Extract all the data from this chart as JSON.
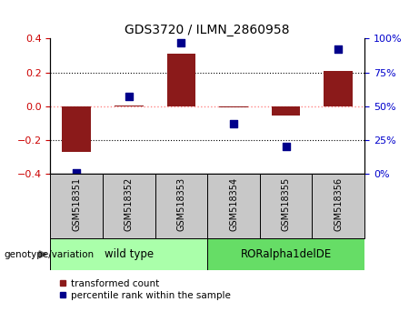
{
  "title": "GDS3720 / ILMN_2860958",
  "samples": [
    "GSM518351",
    "GSM518352",
    "GSM518353",
    "GSM518354",
    "GSM518355",
    "GSM518356"
  ],
  "bar_values": [
    -0.27,
    0.005,
    0.31,
    -0.008,
    -0.055,
    0.21
  ],
  "percentile_values": [
    1,
    57,
    97,
    37,
    20,
    92
  ],
  "bar_color": "#8B1A1A",
  "dot_color": "#00008B",
  "ylim_left": [
    -0.4,
    0.4
  ],
  "ylim_right": [
    0,
    100
  ],
  "yticks_left": [
    -0.4,
    -0.2,
    0.0,
    0.2,
    0.4
  ],
  "yticks_right": [
    0,
    25,
    50,
    75,
    100
  ],
  "ytick_labels_right": [
    "0%",
    "25%",
    "50%",
    "75%",
    "100%"
  ],
  "dotted_hlines": [
    0.2,
    -0.2
  ],
  "zero_line_color": "#FF8888",
  "group1_label": "wild type",
  "group2_label": "RORalpha1delDE",
  "group1_color": "#AAFFAA",
  "group2_color": "#66DD66",
  "genotype_label": "genotype/variation",
  "legend_bar_label": "transformed count",
  "legend_dot_label": "percentile rank within the sample",
  "bar_width": 0.55,
  "left_tick_color": "#CC0000",
  "right_tick_color": "#0000CC",
  "tick_area_color": "#C8C8C8"
}
